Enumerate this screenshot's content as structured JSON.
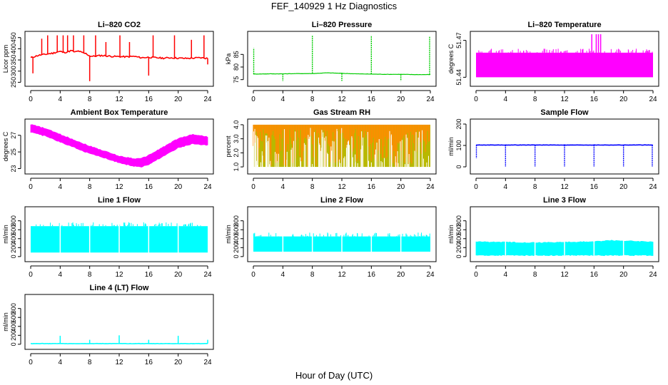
{
  "figure": {
    "title": "FEF_140929  1 Hz Diagnostics",
    "xlabel": "Hour of Day (UTC)"
  },
  "chart_data": [
    {
      "type": "line",
      "title": "Li–820 CO2",
      "ylabel": "Licor ppm",
      "color": "#ff0000",
      "xlim": [
        0,
        24
      ],
      "ylim": [
        245,
        465
      ],
      "xticks": [
        "0",
        "4",
        "8",
        "12",
        "16",
        "20",
        "24"
      ],
      "yticks": [
        250,
        300,
        350,
        400,
        450
      ],
      "series": [
        {
          "x": [
            0,
            0.5,
            1,
            1.5,
            2,
            2.5,
            3,
            3.5,
            4,
            4.5,
            5,
            5.5,
            6,
            6.5,
            7,
            7.5,
            8,
            8.5,
            9,
            9.5,
            10,
            11,
            12,
            13,
            14,
            15,
            16,
            17,
            18,
            19,
            20,
            21,
            22,
            23,
            24
          ],
          "y": [
            360,
            365,
            370,
            373,
            375,
            378,
            380,
            385,
            388,
            383,
            386,
            392,
            385,
            390,
            382,
            378,
            368,
            366,
            368,
            370,
            369,
            366,
            365,
            364,
            366,
            360,
            362,
            360,
            358,
            360,
            358,
            357,
            358,
            360,
            357
          ]
        }
      ],
      "spikes": [
        {
          "x": 0.3,
          "y": 290
        },
        {
          "x": 1.5,
          "y": 445
        },
        {
          "x": 2.3,
          "y": 460
        },
        {
          "x": 3.6,
          "y": 460
        },
        {
          "x": 4.4,
          "y": 460
        },
        {
          "x": 5.0,
          "y": 460
        },
        {
          "x": 5.8,
          "y": 460
        },
        {
          "x": 7.2,
          "y": 460
        },
        {
          "x": 8.0,
          "y": 255
        },
        {
          "x": 8.8,
          "y": 460
        },
        {
          "x": 10.2,
          "y": 430
        },
        {
          "x": 12.1,
          "y": 460
        },
        {
          "x": 13.4,
          "y": 430
        },
        {
          "x": 16.0,
          "y": 280
        },
        {
          "x": 16.6,
          "y": 460
        },
        {
          "x": 19.5,
          "y": 460
        },
        {
          "x": 21.8,
          "y": 440
        },
        {
          "x": 23.5,
          "y": 460
        },
        {
          "x": 24.0,
          "y": 330
        }
      ]
    },
    {
      "type": "line",
      "title": "Li–820 Pressure",
      "ylabel": "kPa",
      "color": "#00cc00",
      "xlim": [
        0,
        24
      ],
      "ylim": [
        73.5,
        93
      ],
      "xticks": [
        "0",
        "4",
        "8",
        "12",
        "16",
        "20",
        "24"
      ],
      "yticks": [
        75,
        80,
        85
      ],
      "series": [
        {
          "x": [
            0,
            2,
            4,
            6,
            8,
            10,
            12,
            14,
            16,
            18,
            20,
            22,
            24
          ],
          "y": [
            77.2,
            77.3,
            77.3,
            77.4,
            77.4,
            77.7,
            77.5,
            77.3,
            77.2,
            77.1,
            77.1,
            77.0,
            77.0
          ]
        }
      ],
      "spikes": [
        {
          "x": 0.05,
          "y": 87.5
        },
        {
          "x": 4,
          "y": 74.5
        },
        {
          "x": 8,
          "y": 92.5
        },
        {
          "x": 12,
          "y": 74.5
        },
        {
          "x": 16,
          "y": 92.5
        },
        {
          "x": 20,
          "y": 74.5
        },
        {
          "x": 23.9,
          "y": 92
        }
      ]
    },
    {
      "type": "area",
      "title": "Li–820 Temperature",
      "ylabel": "degrees C",
      "color": "#ff00ff",
      "xlim": [
        0,
        24
      ],
      "ylim": [
        51.435,
        51.475
      ],
      "xticks": [
        "0",
        "4",
        "8",
        "12",
        "16",
        "20",
        "24"
      ],
      "yticks": [
        "51.44",
        "51.47"
      ],
      "band": {
        "x": [
          0,
          24
        ],
        "low": 51.44,
        "high": 51.46
      },
      "spikes": [
        {
          "x": 15.7,
          "y": 51.475
        },
        {
          "x": 16.3,
          "y": 51.475
        },
        {
          "x": 16.6,
          "y": 51.475
        },
        {
          "x": 16.9,
          "y": 51.475
        }
      ]
    },
    {
      "type": "area",
      "title": "Ambient Box Temperature",
      "ylabel": "degrees C",
      "color": "#ff00ff",
      "xlim": [
        0,
        24
      ],
      "ylim": [
        22.7,
        28.6
      ],
      "xticks": [
        "0",
        "4",
        "8",
        "12",
        "16",
        "20",
        "24"
      ],
      "yticks": [
        23,
        25,
        27
      ],
      "series": [
        {
          "x": [
            0,
            2,
            4,
            6,
            8,
            10,
            12,
            14,
            15,
            16,
            18,
            20,
            22,
            24
          ],
          "low": [
            27.4,
            26.9,
            26.2,
            25.5,
            24.8,
            24.3,
            23.7,
            23.3,
            23.2,
            23.5,
            24.5,
            25.5,
            26.0,
            25.8
          ],
          "high": [
            28.3,
            27.8,
            27.1,
            26.4,
            25.7,
            25.1,
            24.5,
            24.2,
            24.2,
            24.6,
            25.6,
            26.6,
            27.1,
            26.8
          ]
        }
      ]
    },
    {
      "type": "area",
      "title": "Gas Stream RH",
      "ylabel": "percent",
      "color": "#ff8c00",
      "color2": "#b8b800",
      "xlim": [
        0,
        24
      ],
      "ylim": [
        0.7,
        4.2
      ],
      "xticks": [
        "0",
        "4",
        "8",
        "12",
        "16",
        "20",
        "24"
      ],
      "yticks": [
        "1.0",
        "2.0",
        "3.0",
        "4.0"
      ],
      "band": {
        "x": [
          0,
          24
        ],
        "low": 1.0,
        "high": 4.0
      }
    },
    {
      "type": "line",
      "title": "Sample Flow",
      "ylabel": "ml/min",
      "color": "#0000ff",
      "xlim": [
        0,
        24
      ],
      "ylim": [
        -20,
        210
      ],
      "xticks": [
        "0",
        "4",
        "8",
        "12",
        "16",
        "20",
        "24"
      ],
      "yticks": [
        0,
        100,
        200
      ],
      "series": [
        {
          "x": [
            0,
            24
          ],
          "y": [
            102,
            102
          ]
        }
      ],
      "spikes": [
        {
          "x": 0.05,
          "y": 40
        },
        {
          "x": 4,
          "y": 0
        },
        {
          "x": 8,
          "y": 0
        },
        {
          "x": 12,
          "y": 0
        },
        {
          "x": 16,
          "y": 0
        },
        {
          "x": 20,
          "y": 0
        },
        {
          "x": 23.9,
          "y": 0
        }
      ]
    },
    {
      "type": "area",
      "title": "Line 1 Flow",
      "ylabel": "ml/min",
      "color": "#00ffff",
      "xlim": [
        0,
        24
      ],
      "ylim": [
        -50,
        1050
      ],
      "xticks": [
        "0",
        "4",
        "8",
        "12",
        "16",
        "20",
        "24"
      ],
      "yticks": [
        0,
        200,
        400,
        600,
        800
      ],
      "band": {
        "x": [
          0,
          24
        ],
        "low": 90,
        "high": 680
      },
      "gaps": [
        4,
        8,
        12,
        16,
        20
      ]
    },
    {
      "type": "area",
      "title": "Line 2 Flow",
      "ylabel": "ml/min",
      "color": "#00ffff",
      "xlim": [
        0,
        24
      ],
      "ylim": [
        -50,
        1050
      ],
      "xticks": [
        "0",
        "4",
        "8",
        "12",
        "16",
        "20",
        "24"
      ],
      "yticks": [
        0,
        200,
        400,
        600,
        800
      ],
      "band": {
        "x": [
          0,
          24
        ],
        "low": 110,
        "high": 450
      },
      "gaps": [
        4,
        8,
        12,
        16,
        20
      ]
    },
    {
      "type": "area",
      "title": "Line 3 Flow",
      "ylabel": "ml/min",
      "color": "#00ffff",
      "xlim": [
        0,
        24
      ],
      "ylim": [
        -50,
        1050
      ],
      "xticks": [
        "0",
        "4",
        "8",
        "12",
        "16",
        "20",
        "24"
      ],
      "yticks": [
        0,
        200,
        400,
        600,
        800
      ],
      "series": [
        {
          "x": [
            0,
            4,
            8,
            12,
            16,
            18,
            20,
            24
          ],
          "low": [
            30,
            30,
            30,
            30,
            30,
            30,
            30,
            30
          ],
          "high": [
            330,
            320,
            310,
            320,
            330,
            360,
            350,
            330
          ]
        }
      ],
      "gaps": [
        4,
        8,
        12,
        16,
        20
      ]
    },
    {
      "type": "line",
      "title": "Line 4 (LT) Flow",
      "ylabel": "ml/min",
      "color": "#00ffff",
      "xlim": [
        0,
        24
      ],
      "ylim": [
        -50,
        1050
      ],
      "xticks": [
        "0",
        "4",
        "8",
        "12",
        "16",
        "20",
        "24"
      ],
      "yticks": [
        0,
        200,
        400,
        600,
        800
      ],
      "series": [
        {
          "x": [
            0,
            24
          ],
          "y": [
            15,
            15
          ]
        }
      ],
      "spikes": [
        {
          "x": 4,
          "y": 190
        },
        {
          "x": 8,
          "y": 100
        },
        {
          "x": 12,
          "y": 200
        },
        {
          "x": 16,
          "y": 100
        },
        {
          "x": 20,
          "y": 190
        },
        {
          "x": 24,
          "y": 100
        }
      ]
    }
  ]
}
